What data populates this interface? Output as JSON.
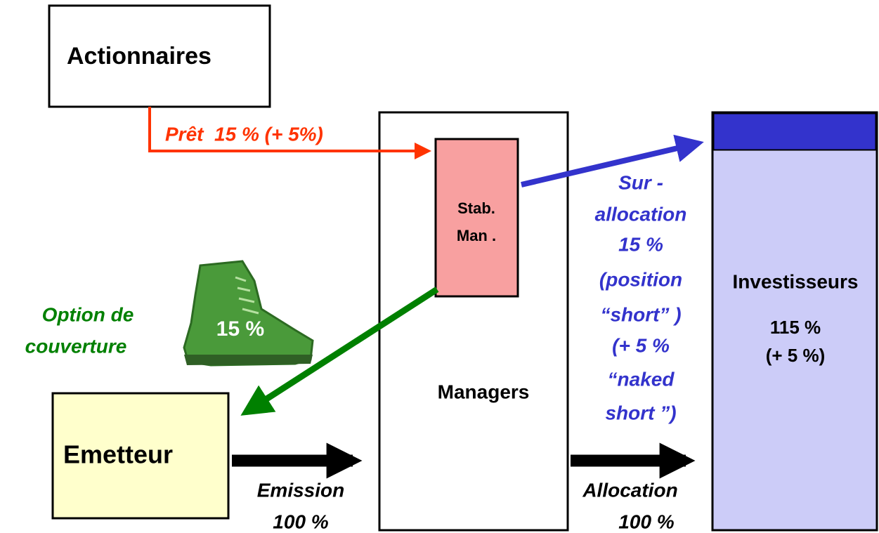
{
  "nodes": [
    {
      "label": "Actionnaires"
    },
    {
      "label": [
        "Stab.",
        "Man ."
      ]
    },
    {
      "label": "Managers"
    },
    {
      "label": "Investisseurs",
      "detail": [
        "115 %",
        "(+ 5 %)"
      ]
    },
    {
      "label": "Emetteur"
    }
  ],
  "edges": [
    {
      "label": "Prêt  15 % (+ 5%)"
    },
    {
      "label": [
        "Sur -",
        "allocation",
        "15 %",
        "(position",
        "“short” )",
        "(+ 5 %",
        "“naked",
        "short ”)"
      ]
    },
    {
      "label": [
        "Option de",
        "couverture"
      ],
      "badge": "15 %"
    },
    {
      "label": [
        "Emission",
        "100 %"
      ]
    },
    {
      "label": [
        "Allocation",
        "100 %"
      ]
    }
  ]
}
